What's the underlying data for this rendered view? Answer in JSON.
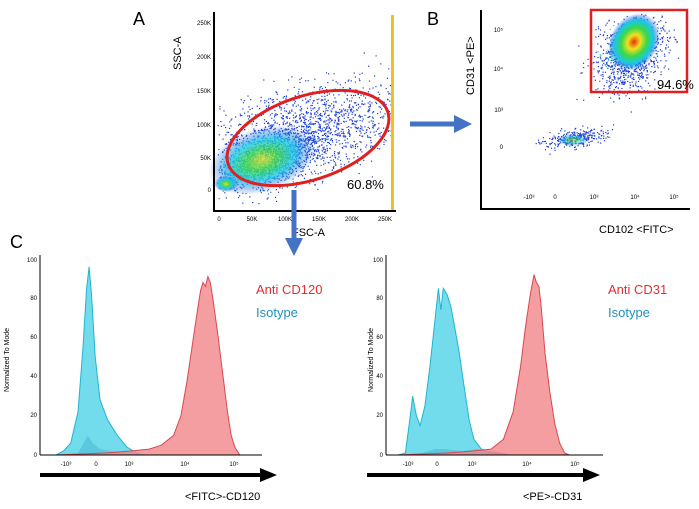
{
  "panel_labels": {
    "a": "A",
    "b": "B",
    "c": "C"
  },
  "chart_data": [
    {
      "type": "scatter",
      "panel": "A",
      "xlabel": "FSC-A",
      "ylabel": "SSC-A",
      "x_ticks": [
        "0",
        "50K",
        "100K",
        "150K",
        "200K",
        "250K"
      ],
      "y_ticks": [
        "0",
        "50K",
        "100K",
        "150K",
        "200K",
        "250K"
      ],
      "xlim": [
        0,
        262144
      ],
      "ylim": [
        0,
        262144
      ],
      "gate": {
        "shape": "ellipse",
        "percent": "60.8%",
        "color": "#e02020"
      },
      "density_colormap": [
        "#1a3cd8",
        "#18c8e8",
        "#3cd848",
        "#f0e020"
      ]
    },
    {
      "type": "scatter",
      "panel": "B",
      "xlabel": "CD102 <FITC>",
      "ylabel": "CD31 <PE>",
      "x_ticks": [
        "-10³",
        "0",
        "10³",
        "10⁴",
        "10⁵"
      ],
      "y_ticks": [
        "0",
        "10³",
        "10⁴",
        "10⁵"
      ],
      "gate": {
        "shape": "rectangle",
        "percent": "94.6%",
        "color": "#e02020"
      },
      "density_colormap": [
        "#1a3cd8",
        "#18c8e8",
        "#3cd848",
        "#f0e020",
        "#e83010"
      ]
    },
    {
      "type": "area",
      "panel": "C-left",
      "ylabel": "Normalized To Mode",
      "xlabel": "<FITC>-CD120",
      "y_ticks": [
        "0",
        "20",
        "40",
        "60",
        "80",
        "100"
      ],
      "ylim": [
        0,
        100
      ],
      "x_ticks": [
        "-10³",
        "0",
        "10³",
        "10⁴",
        "10⁵"
      ],
      "legend": [
        {
          "name": "Anti CD120",
          "color": "#e03030"
        },
        {
          "name": "Isotype",
          "color": "#1f8fbf"
        }
      ],
      "series": [
        {
          "name": "Anti CD120",
          "color": "#f2868a",
          "points": [
            [
              0,
              0
            ],
            [
              2,
              1
            ],
            [
              3,
              2
            ],
            [
              3.8,
              3
            ],
            [
              4.3,
              5
            ],
            [
              4.8,
              10
            ],
            [
              5.1,
              20
            ],
            [
              5.35,
              38
            ],
            [
              5.55,
              55
            ],
            [
              5.75,
              72
            ],
            [
              5.9,
              84
            ],
            [
              6.0,
              88
            ],
            [
              6.1,
              86
            ],
            [
              6.2,
              91
            ],
            [
              6.3,
              88
            ],
            [
              6.4,
              80
            ],
            [
              6.6,
              62
            ],
            [
              6.8,
              42
            ],
            [
              7.0,
              22
            ],
            [
              7.15,
              10
            ],
            [
              7.3,
              4
            ],
            [
              7.5,
              0
            ]
          ]
        },
        {
          "name": "Isotype",
          "color": "#4fd3e8",
          "points": [
            [
              0,
              0
            ],
            [
              0.3,
              2
            ],
            [
              0.6,
              6
            ],
            [
              0.9,
              22
            ],
            [
              1.1,
              55
            ],
            [
              1.25,
              85
            ],
            [
              1.35,
              96
            ],
            [
              1.45,
              82
            ],
            [
              1.6,
              50
            ],
            [
              1.8,
              28
            ],
            [
              2.1,
              18
            ],
            [
              2.5,
              10
            ],
            [
              2.9,
              4
            ],
            [
              3.3,
              1
            ],
            [
              3.6,
              0
            ]
          ]
        },
        {
          "name": "Overlap",
          "color": "#7d8fb0",
          "points": [
            [
              0,
              0
            ],
            [
              0.9,
              1
            ],
            [
              1.3,
              10
            ],
            [
              1.5,
              6
            ],
            [
              1.8,
              3
            ],
            [
              2.3,
              2
            ],
            [
              3.0,
              1
            ],
            [
              3.6,
              0
            ]
          ]
        }
      ]
    },
    {
      "type": "area",
      "panel": "C-right",
      "ylabel": "Normalized To Mode",
      "xlabel": "<PE>-CD31",
      "y_ticks": [
        "0",
        "20",
        "40",
        "60",
        "80",
        "100"
      ],
      "ylim": [
        0,
        100
      ],
      "x_ticks": [
        "-10³",
        "0",
        "10³",
        "10⁴",
        "10⁵"
      ],
      "legend": [
        {
          "name": "Anti CD31",
          "color": "#e03030"
        },
        {
          "name": "Isotype",
          "color": "#1f8fbf"
        }
      ],
      "series": [
        {
          "name": "Anti CD31",
          "color": "#f2868a",
          "points": [
            [
              0,
              0
            ],
            [
              2,
              1
            ],
            [
              3,
              2
            ],
            [
              3.8,
              3
            ],
            [
              4.3,
              8
            ],
            [
              4.7,
              22
            ],
            [
              5.0,
              45
            ],
            [
              5.2,
              65
            ],
            [
              5.4,
              82
            ],
            [
              5.55,
              92
            ],
            [
              5.65,
              88
            ],
            [
              5.75,
              86
            ],
            [
              5.85,
              75
            ],
            [
              6.0,
              52
            ],
            [
              6.2,
              32
            ],
            [
              6.4,
              16
            ],
            [
              6.6,
              6
            ],
            [
              6.8,
              1
            ],
            [
              7.0,
              0
            ]
          ]
        },
        {
          "name": "Isotype",
          "color": "#4fd3e8",
          "points": [
            [
              0,
              0
            ],
            [
              0.3,
              1
            ],
            [
              0.5,
              20
            ],
            [
              0.6,
              30
            ],
            [
              0.75,
              20
            ],
            [
              0.9,
              15
            ],
            [
              1.1,
              25
            ],
            [
              1.3,
              45
            ],
            [
              1.5,
              68
            ],
            [
              1.65,
              85
            ],
            [
              1.75,
              74
            ],
            [
              1.85,
              85
            ],
            [
              2.0,
              82
            ],
            [
              2.15,
              76
            ],
            [
              2.3,
              66
            ],
            [
              2.5,
              52
            ],
            [
              2.7,
              35
            ],
            [
              2.9,
              18
            ],
            [
              3.1,
              8
            ],
            [
              3.4,
              3
            ],
            [
              3.8,
              1
            ],
            [
              4.2,
              0
            ]
          ]
        },
        {
          "name": "Overlap",
          "color": "#7d8fb0",
          "points": [
            [
              0,
              0
            ],
            [
              1.0,
              1
            ],
            [
              1.5,
              3
            ],
            [
              2.0,
              3
            ],
            [
              2.6,
              2
            ],
            [
              3.2,
              3
            ],
            [
              3.8,
              2
            ],
            [
              4.3,
              1
            ],
            [
              4.6,
              0
            ]
          ]
        }
      ]
    }
  ]
}
